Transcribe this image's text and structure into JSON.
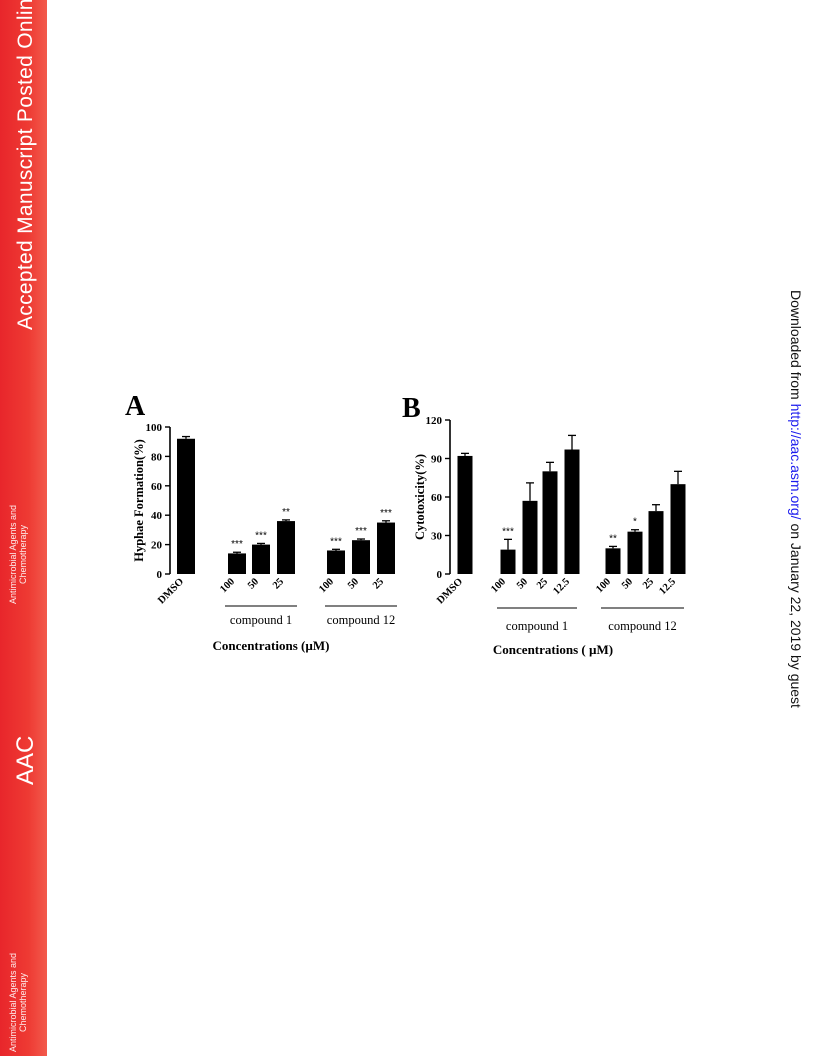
{
  "sidebar": {
    "title": "Accepted Manuscript Posted Online",
    "journal_line1": "Antimicrobial Agents and",
    "journal_line2": "Chemotherapy",
    "abbrev": "AAC",
    "color": "#e8262b"
  },
  "download": {
    "prefix": "Downloaded from ",
    "link": "http://aac.asm.org/",
    "suffix": " on January 22, 2019 by guest",
    "link_color": "#1a1aee"
  },
  "chart_data": [
    {
      "panel": "A",
      "type": "bar",
      "ylabel": "Hyphae Formation(%)",
      "xlabel": "Concentrations (µM)",
      "ylim": [
        0,
        100
      ],
      "yticks": [
        "0",
        "20",
        "40",
        "60",
        "80",
        "100"
      ],
      "categories": [
        "DMSO",
        "100",
        "50",
        "25",
        "100",
        "50",
        "25"
      ],
      "values": [
        92,
        14,
        20,
        36,
        16,
        23,
        35
      ],
      "errors": [
        1.5,
        0.8,
        0.8,
        0.8,
        0.8,
        0.8,
        1.2
      ],
      "significance": [
        "",
        "***",
        "***",
        "**",
        "***",
        "***",
        "***"
      ],
      "groups": [
        {
          "label": "compound 1",
          "indices": [
            1,
            2,
            3
          ]
        },
        {
          "label": "compound 12",
          "indices": [
            4,
            5,
            6
          ]
        }
      ]
    },
    {
      "panel": "B",
      "type": "bar",
      "ylabel": "Cytotoxicity(%)",
      "xlabel": "Concentrations ( µM)",
      "ylim": [
        0,
        120
      ],
      "yticks": [
        "0",
        "30",
        "60",
        "90",
        "120"
      ],
      "categories": [
        "DMSO",
        "100",
        "50",
        "25",
        "12.5",
        "100",
        "50",
        "25",
        "12.5"
      ],
      "values": [
        92,
        19,
        57,
        80,
        97,
        20,
        33,
        49,
        70
      ],
      "errors": [
        2,
        8,
        14,
        7,
        11,
        1.5,
        1.5,
        5,
        10
      ],
      "significance": [
        "",
        "***",
        "",
        "",
        "",
        "**",
        "*",
        "",
        ""
      ],
      "groups": [
        {
          "label": "compound 1",
          "indices": [
            1,
            2,
            3,
            4
          ]
        },
        {
          "label": "compound 12",
          "indices": [
            5,
            6,
            7,
            8
          ]
        }
      ]
    }
  ]
}
